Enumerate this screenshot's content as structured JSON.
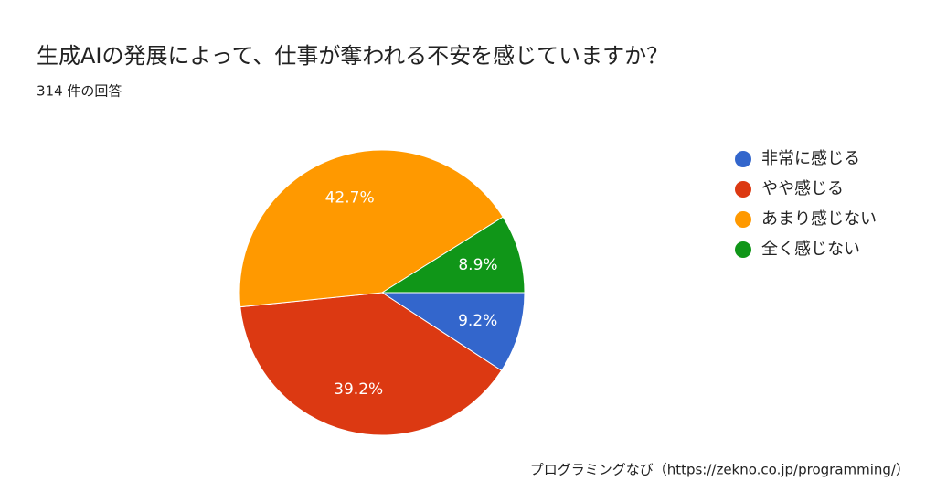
{
  "chart_data": {
    "type": "pie",
    "title": "生成AIの発展によって、仕事が奪われる不安を感じていますか？",
    "subtitle": "314 件の回答",
    "source": "プログラミングなび（https://zekno.co.jp/programming/）",
    "categories": [
      "非常に感じる",
      "やや感じる",
      "あまり感じない",
      "全く感じない"
    ],
    "values": [
      9.2,
      39.2,
      42.7,
      8.9
    ],
    "value_labels": [
      "9.2%",
      "39.2%",
      "42.7%",
      "8.9%"
    ],
    "colors": [
      "#3366cc",
      "#dc3912",
      "#ff9900",
      "#109618"
    ],
    "legend": "right"
  }
}
